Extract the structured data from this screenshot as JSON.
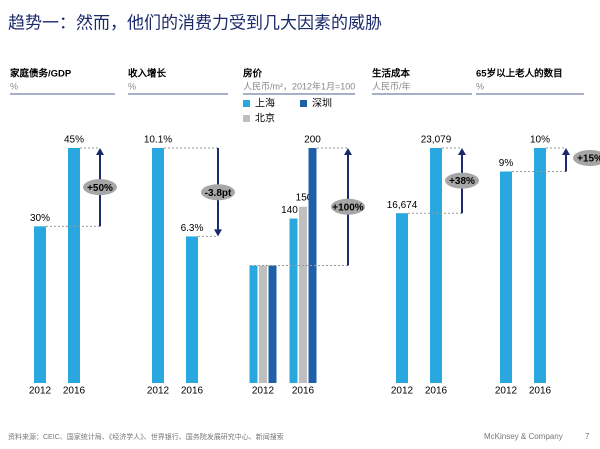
{
  "header": {
    "title": "趋势一：然而，他们的消费力受到几大因素的威胁"
  },
  "chart_data": [
    {
      "type": "bar",
      "title": "家庭债务/GDP",
      "subtitle": "%",
      "categories": [
        "2012",
        "2016"
      ],
      "values": [
        30,
        45
      ],
      "value_labels": [
        "30%",
        "45%"
      ],
      "color": "#29a8e0",
      "annotation": "+50%"
    },
    {
      "type": "bar",
      "title": "收入增长",
      "subtitle": "%",
      "categories": [
        "2012",
        "2016"
      ],
      "values": [
        10.1,
        6.3
      ],
      "value_labels": [
        "10.1%",
        "6.3%"
      ],
      "color": "#29a8e0",
      "annotation": "-3.8pt"
    },
    {
      "type": "grouped-bar",
      "title": "房价",
      "subtitle": "人民币/m²，2012年1月=100",
      "categories": [
        "2012",
        "2016"
      ],
      "series": [
        {
          "name": "上海",
          "color": "#29a8e0",
          "values": [
            100,
            140
          ],
          "value_labels": [
            null,
            "140"
          ]
        },
        {
          "name": "北京",
          "color": "#bfbfbf",
          "values": [
            100,
            150
          ],
          "value_labels": [
            null,
            "150"
          ]
        },
        {
          "name": "深圳",
          "color": "#1f5fa8",
          "values": [
            100,
            200
          ],
          "value_labels": [
            null,
            "200"
          ]
        }
      ],
      "annotation": "+100%"
    },
    {
      "type": "bar",
      "title": "生活成本",
      "subtitle": "人民币/年",
      "categories": [
        "2012",
        "2016"
      ],
      "values": [
        16674,
        23079
      ],
      "value_labels": [
        "16,674",
        "23,079"
      ],
      "color": "#29a8e0",
      "annotation": "+38%"
    },
    {
      "type": "bar",
      "title": "65岁以上老人的数目",
      "subtitle": "%",
      "categories": [
        "2012",
        "2016"
      ],
      "values": [
        9,
        10
      ],
      "value_labels": [
        "9%",
        "10%"
      ],
      "color": "#29a8e0",
      "annotation": "+15%"
    }
  ],
  "footer": {
    "source": "资料来源：CEIC、国家统计局、《经济学人》、世界银行、国务院发展研究中心、新闻搜索",
    "company": "McKinsey & Company",
    "page": "7"
  }
}
